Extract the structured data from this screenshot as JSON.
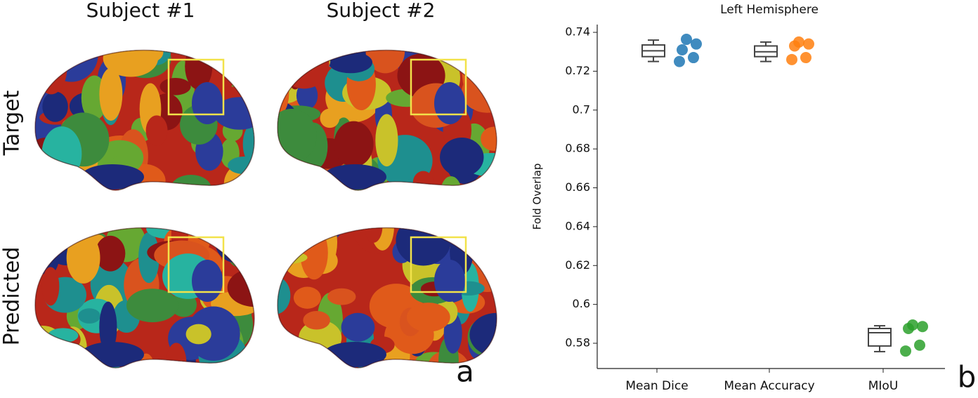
{
  "figure": {
    "columns": [
      "Subject #1",
      "Subject #2"
    ],
    "rows": [
      "Target",
      "Predicted"
    ],
    "panel_a": "a",
    "panel_b": "b"
  },
  "chart_data": {
    "type": "box",
    "title": "Left Hemisphere",
    "ylabel": "Fold Overlap",
    "categories": [
      "Mean Dice",
      "Mean Accuracy",
      "MIoU"
    ],
    "boxes": [
      {
        "min": 0.725,
        "q1": 0.7275,
        "median": 0.7305,
        "q3": 0.7335,
        "max": 0.736
      },
      {
        "min": 0.725,
        "q1": 0.7275,
        "median": 0.73,
        "q3": 0.733,
        "max": 0.735
      },
      {
        "min": 0.5757,
        "q1": 0.5786,
        "median": 0.5854,
        "q3": 0.5876,
        "max": 0.589
      }
    ],
    "series": [
      {
        "color": "#1f77b4",
        "values": [
          0.7364,
          0.734,
          0.731,
          0.727,
          0.725
        ]
      },
      {
        "color": "#ff7f0e",
        "values": [
          0.735,
          0.734,
          0.733,
          0.727,
          0.726
        ]
      },
      {
        "color": "#2ca02c",
        "values": [
          0.5894,
          0.5886,
          0.5876,
          0.579,
          0.576
        ]
      }
    ],
    "box_color": "#444444",
    "ylim": [
      0.567,
      0.744
    ],
    "yticks": [
      0.58,
      0.6,
      0.62,
      0.64,
      0.66,
      0.68,
      0.7,
      0.72,
      0.74
    ]
  }
}
